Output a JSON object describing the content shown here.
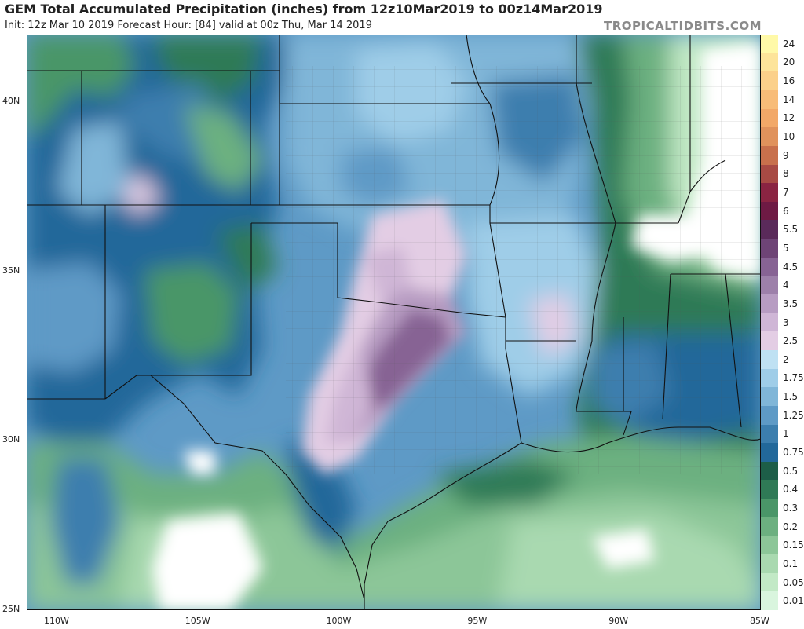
{
  "header": {
    "title": "GEM Total Accumulated Precipitation (inches) from 12z10Mar2019 to 00z14Mar2019",
    "subtitle": "Init: 12z Mar 10 2019   Forecast Hour: [84]   valid at 00z Thu, Mar 14 2019",
    "brand": "TROPICALTIDBITS.COM"
  },
  "map": {
    "lat_labels": [
      "40N",
      "35N",
      "30N",
      "25N"
    ],
    "lon_labels": [
      "110W",
      "105W",
      "100W",
      "95W",
      "90W",
      "85W"
    ],
    "lat_values": [
      40,
      35,
      30,
      25
    ],
    "lon_values": [
      -110,
      -105,
      -100,
      -95,
      -90,
      -85
    ],
    "extent": {
      "lon_min": -111,
      "lon_max": -85,
      "lat_min": 25,
      "lat_max": 42
    }
  },
  "legend": {
    "levels": [
      {
        "label": "24",
        "color": "#fff9a8"
      },
      {
        "label": "20",
        "color": "#fde49a"
      },
      {
        "label": "16",
        "color": "#fbd08a"
      },
      {
        "label": "14",
        "color": "#f8bc78"
      },
      {
        "label": "12",
        "color": "#f2a868"
      },
      {
        "label": "10",
        "color": "#e0925c"
      },
      {
        "label": "9",
        "color": "#c8704c"
      },
      {
        "label": "8",
        "color": "#a84a44"
      },
      {
        "label": "7",
        "color": "#8a2442"
      },
      {
        "label": "6",
        "color": "#6e1a44"
      },
      {
        "label": "5.5",
        "color": "#5a2a5a"
      },
      {
        "label": "5",
        "color": "#6e4476"
      },
      {
        "label": "4.5",
        "color": "#876394"
      },
      {
        "label": "4",
        "color": "#9d80aa"
      },
      {
        "label": "3.5",
        "color": "#b79cc2"
      },
      {
        "label": "3",
        "color": "#cfb6d6"
      },
      {
        "label": "2.5",
        "color": "#e3cde4"
      },
      {
        "label": "2",
        "color": "#bfe1f3"
      },
      {
        "label": "1.75",
        "color": "#9fcde8"
      },
      {
        "label": "1.5",
        "color": "#80b6d8"
      },
      {
        "label": "1.25",
        "color": "#5e9ac6"
      },
      {
        "label": "1",
        "color": "#3c7eae"
      },
      {
        "label": "0.75",
        "color": "#22689a"
      },
      {
        "label": "0.5",
        "color": "#1d5e48"
      },
      {
        "label": "0.4",
        "color": "#2f7a56"
      },
      {
        "label": "0.3",
        "color": "#4a9668"
      },
      {
        "label": "0.2",
        "color": "#6cb080"
      },
      {
        "label": "0.15",
        "color": "#8cc698"
      },
      {
        "label": "0.1",
        "color": "#a9d9b0"
      },
      {
        "label": "0.05",
        "color": "#c2e9c6"
      },
      {
        "label": "0.01",
        "color": "#d9f5de"
      }
    ]
  }
}
